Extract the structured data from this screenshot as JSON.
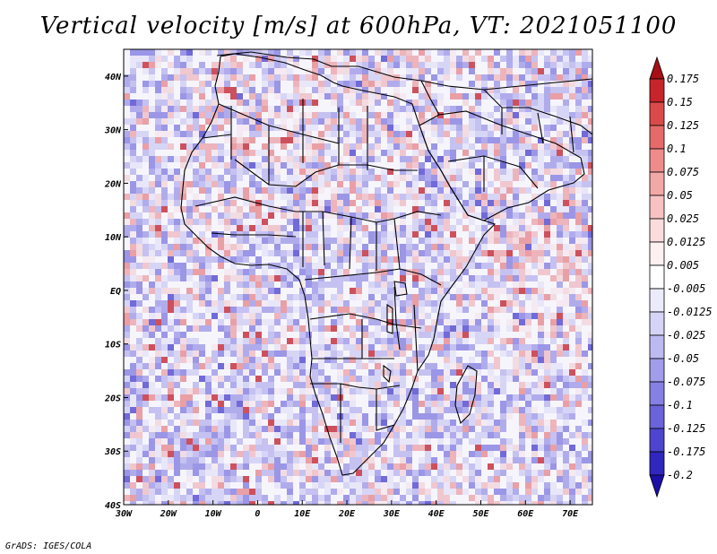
{
  "title": "Vertical velocity [m/s] at 600hPa, VT: 2021051100",
  "credit": "GrADS: IGES/COLA",
  "map": {
    "lon_range": [
      -30,
      75
    ],
    "lat_range": [
      -40,
      45
    ],
    "lon_ticks": [
      {
        "value": -30,
        "label": "30W"
      },
      {
        "value": -20,
        "label": "20W"
      },
      {
        "value": -10,
        "label": "10W"
      },
      {
        "value": 0,
        "label": "0"
      },
      {
        "value": 10,
        "label": "10E"
      },
      {
        "value": 20,
        "label": "20E"
      },
      {
        "value": 30,
        "label": "30E"
      },
      {
        "value": 40,
        "label": "40E"
      },
      {
        "value": 50,
        "label": "50E"
      },
      {
        "value": 60,
        "label": "60E"
      },
      {
        "value": 70,
        "label": "70E"
      }
    ],
    "lat_ticks": [
      {
        "value": 40,
        "label": "40N"
      },
      {
        "value": 30,
        "label": "30N"
      },
      {
        "value": 20,
        "label": "20N"
      },
      {
        "value": 10,
        "label": "10N"
      },
      {
        "value": 0,
        "label": "EQ"
      },
      {
        "value": -10,
        "label": "10S"
      },
      {
        "value": -20,
        "label": "20S"
      },
      {
        "value": -30,
        "label": "30S"
      },
      {
        "value": -40,
        "label": "40S"
      }
    ]
  },
  "colorbar": {
    "levels": [
      "0.175",
      "0.15",
      "0.125",
      "0.1",
      "0.075",
      "0.05",
      "0.025",
      "0.0125",
      "0.005",
      "-0.005",
      "-0.0125",
      "-0.025",
      "-0.05",
      "-0.075",
      "-0.1",
      "-0.125",
      "-0.175",
      "-0.2"
    ],
    "colors": [
      "#a50f15",
      "#c8242b",
      "#db4a4a",
      "#e66a6a",
      "#ee8c8c",
      "#f3a8a8",
      "#f7c2c2",
      "#fbdcdc",
      "#fdf0f0",
      "#ffffff",
      "#ecebfb",
      "#d6d4f6",
      "#bdbaf0",
      "#a19dea",
      "#8580e2",
      "#6a63d9",
      "#4d45cf",
      "#3027bf",
      "#1a10a8"
    ]
  }
}
